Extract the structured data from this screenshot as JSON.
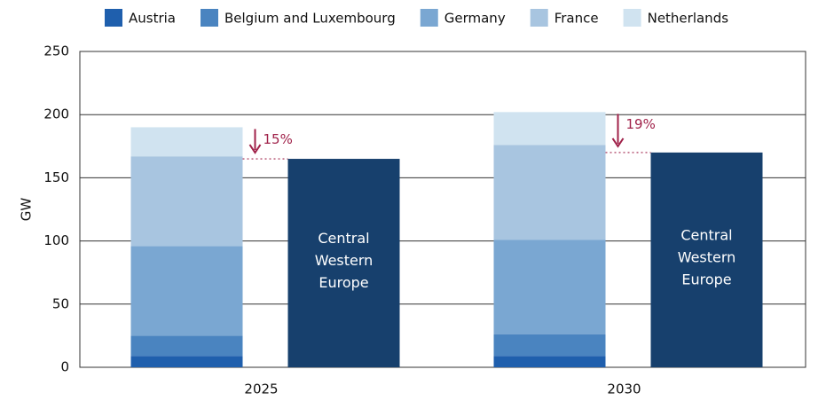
{
  "chart_data": {
    "type": "bar",
    "stacked": true,
    "y_label": "GW",
    "categories": [
      "2025",
      "2030"
    ],
    "series": [
      {
        "name": "Austria",
        "color": "#1f5fad",
        "values": [
          9,
          9
        ]
      },
      {
        "name": "Belgium and Luxembourg",
        "color": "#4a84c0",
        "values": [
          16,
          17
        ]
      },
      {
        "name": "Germany",
        "color": "#7aa7d2",
        "values": [
          71,
          75
        ]
      },
      {
        "name": "France",
        "color": "#a8c5e0",
        "values": [
          71,
          75
        ]
      },
      {
        "name": "Netherlands",
        "color": "#d0e3f0",
        "values": [
          23,
          26
        ]
      }
    ],
    "comparison": {
      "label_lines": [
        "Central",
        "Western",
        "Europe"
      ],
      "color": "#17406d",
      "values": [
        165,
        170
      ]
    },
    "annotations": [
      "15%",
      "19%"
    ],
    "annotation_color": "#a0224a",
    "ylim": [
      0,
      250
    ],
    "yticks": [
      0,
      50,
      100,
      150,
      200,
      250
    ],
    "grid": true
  }
}
